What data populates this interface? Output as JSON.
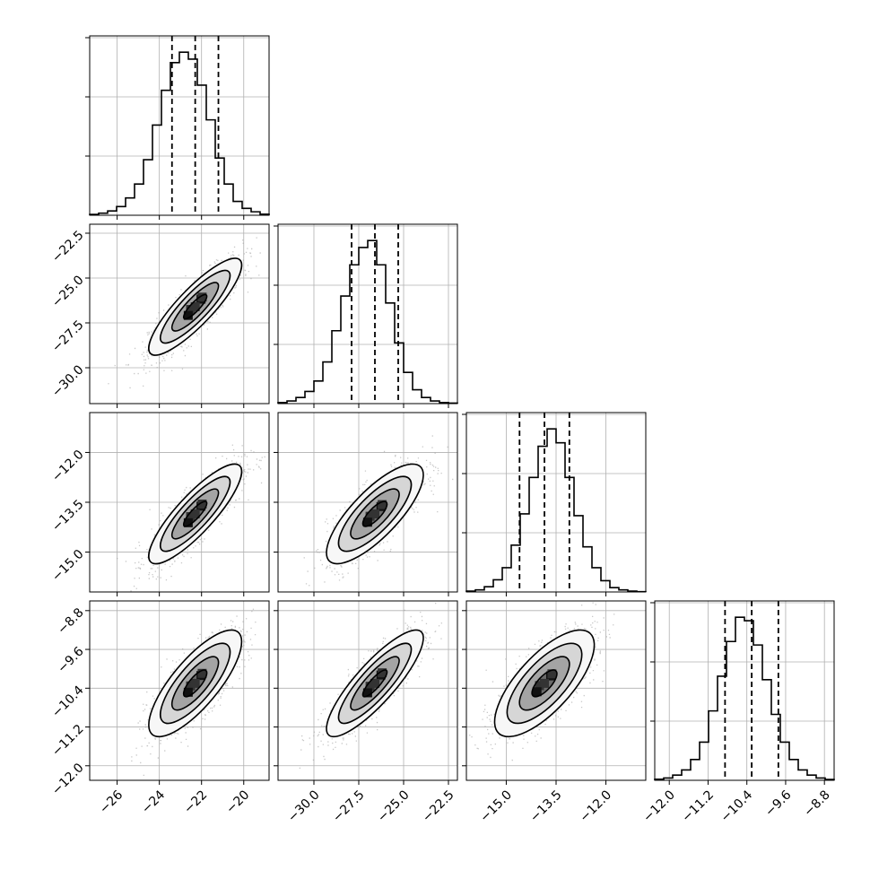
{
  "chart_data": {
    "type": "corner",
    "grid": true,
    "colors": {
      "contour": "#000000",
      "hist": "#000000",
      "points": "#9a9a9a",
      "grid": "#b0b0b0"
    },
    "params": [
      {
        "range": [
          -27.3,
          -18.8
        ],
        "ticks": [
          -26,
          -24,
          -22,
          -20
        ],
        "tick_labels": [
          "−26",
          "−24",
          "−22",
          "−20"
        ],
        "mean": -22.3,
        "sd": 1.1,
        "quantiles": [
          -23.4,
          -22.3,
          -21.2
        ]
      },
      {
        "range": [
          -32.0,
          -22.0
        ],
        "ticks": [
          -30.0,
          -27.5,
          -25.0,
          -22.5
        ],
        "tick_labels": [
          "−30.0",
          "−27.5",
          "−25.0",
          "−22.5"
        ],
        "mean": -26.6,
        "sd": 1.35,
        "quantiles": [
          -27.9,
          -26.6,
          -25.3
        ]
      },
      {
        "range": [
          -16.2,
          -10.8
        ],
        "ticks": [
          -15.0,
          -13.5,
          -12.0
        ],
        "tick_labels": [
          "−15.0",
          "−13.5",
          "−12.0"
        ],
        "mean": -13.85,
        "sd": 0.75,
        "quantiles": [
          -14.6,
          -13.85,
          -13.1
        ]
      },
      {
        "range": [
          -12.3,
          -8.6
        ],
        "ticks": [
          -12.0,
          -11.2,
          -10.4,
          -9.6,
          -8.8
        ],
        "tick_labels": [
          "−12.0",
          "−11.2",
          "−10.4",
          "−9.6",
          "−8.8"
        ],
        "mean": -10.3,
        "sd": 0.55,
        "quantiles": [
          -10.85,
          -10.3,
          -9.75
        ]
      }
    ],
    "histograms": [
      {
        "param": 0,
        "bins": 20,
        "range": [
          -27.3,
          -18.8
        ],
        "values": [
          0.5,
          1.2,
          2.5,
          5,
          10,
          18,
          32,
          52,
          72,
          88,
          94,
          90,
          75,
          55,
          33,
          18,
          8,
          4,
          2,
          0.6
        ],
        "peak": 94
      },
      {
        "param": 1,
        "bins": 20,
        "range": [
          -32.0,
          -22.0
        ],
        "values": [
          0.6,
          1.5,
          3.5,
          7,
          13,
          24,
          42,
          62,
          80,
          90,
          94,
          80,
          58,
          35,
          18,
          8,
          3.5,
          1.5,
          0.6,
          0.3
        ],
        "peak": 94
      },
      {
        "param": 2,
        "bins": 20,
        "range": [
          -16.2,
          -10.8
        ],
        "values": [
          0.5,
          1.2,
          3,
          7,
          14,
          27,
          45,
          66,
          84,
          94,
          86,
          66,
          44,
          26,
          14,
          6.5,
          2.5,
          1.2,
          0.5,
          0.2
        ],
        "peak": 94
      },
      {
        "param": 3,
        "bins": 20,
        "range": [
          -12.3,
          -8.6
        ],
        "values": [
          0.6,
          1.3,
          3,
          6,
          12,
          22,
          40,
          60,
          80,
          94,
          92,
          78,
          58,
          38,
          22,
          12,
          6,
          3,
          1.3,
          0.5
        ],
        "peak": 94
      }
    ],
    "pairs": [
      {
        "x_param": 0,
        "y_param": 1,
        "correlation": 0.86
      },
      {
        "x_param": 0,
        "y_param": 2,
        "correlation": 0.85
      },
      {
        "x_param": 1,
        "y_param": 2,
        "correlation": 0.78
      },
      {
        "x_param": 0,
        "y_param": 3,
        "correlation": 0.78
      },
      {
        "x_param": 1,
        "y_param": 3,
        "correlation": 0.85
      },
      {
        "x_param": 2,
        "y_param": 3,
        "correlation": 0.72
      }
    ],
    "contour_levels_sigma": [
      0.5,
      1.0,
      1.5,
      2.0
    ]
  }
}
